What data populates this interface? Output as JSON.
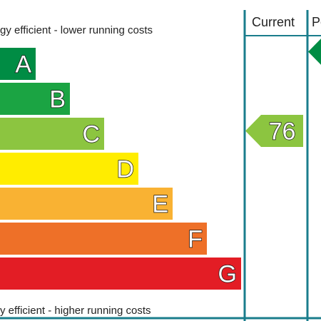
{
  "chart_data": {
    "type": "bar",
    "top_caption": "gy efficient - lower running costs",
    "bottom_caption": "y efficient - higher running costs",
    "bands": [
      {
        "letter": "A",
        "color": "#008c44"
      },
      {
        "letter": "B",
        "color": "#1ba443"
      },
      {
        "letter": "C",
        "color": "#8cc540"
      },
      {
        "letter": "D",
        "color": "#ffed00"
      },
      {
        "letter": "E",
        "color": "#f9b233"
      },
      {
        "letter": "F",
        "color": "#ee7028"
      },
      {
        "letter": "G",
        "color": "#e31d25"
      }
    ],
    "columns": [
      {
        "header": "Current",
        "rating": "76",
        "band": "C",
        "color": "#8cc540"
      },
      {
        "header": "Po",
        "band": "A",
        "color": "#008c44"
      }
    ],
    "frame_color": "#1a7d8c"
  }
}
